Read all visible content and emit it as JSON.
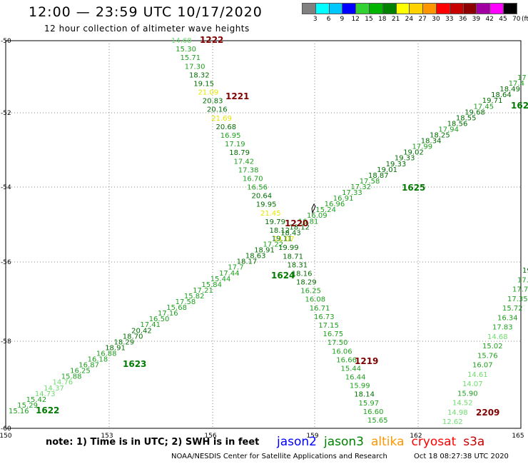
{
  "header": {
    "title": "12:00 — 23:59 UTC 10/17/2020",
    "subtitle": "12 hour collection of altimeter wave heights"
  },
  "legend": {
    "unit": "(ft)",
    "bins": [
      {
        "label": "3",
        "color": "#808080"
      },
      {
        "label": "6",
        "color": "#00ffff"
      },
      {
        "label": "9",
        "color": "#00c8ff"
      },
      {
        "label": "12",
        "color": "#0000ff"
      },
      {
        "label": "15",
        "color": "#32d232"
      },
      {
        "label": "18",
        "color": "#00b400"
      },
      {
        "label": "21",
        "color": "#008200"
      },
      {
        "label": "24",
        "color": "#ffff00"
      },
      {
        "label": "27",
        "color": "#ffd200"
      },
      {
        "label": "30",
        "color": "#ff9600"
      },
      {
        "label": "33",
        "color": "#ff0000"
      },
      {
        "label": "36",
        "color": "#c80000"
      },
      {
        "label": "39",
        "color": "#8c0000"
      },
      {
        "label": "42",
        "color": "#a000a0"
      },
      {
        "label": "45",
        "color": "#ff00ff"
      },
      {
        "label": "70",
        "color": "#000000"
      }
    ]
  },
  "map": {
    "lon_labels": [
      "150",
      "153",
      "156",
      "159",
      "162",
      "165"
    ],
    "lat_labels": [
      "-50",
      "-52",
      "-54",
      "-56",
      "-58",
      "-60"
    ],
    "passes": [
      {
        "label": "1222",
        "color": "#800000"
      },
      {
        "label": "1221",
        "color": "#800000"
      },
      {
        "label": "1220",
        "color": "#800000"
      },
      {
        "label": "1219",
        "color": "#800000"
      },
      {
        "label": "2209",
        "color": "#800000"
      },
      {
        "label": "1625",
        "color": "#007a00"
      },
      {
        "label": "1624",
        "color": "#007a00"
      },
      {
        "label": "1623",
        "color": "#007a00"
      },
      {
        "label": "1622",
        "color": "#007a00"
      },
      {
        "label": "162",
        "color": "#007a00"
      }
    ],
    "track_values": {
      "jason3_desc_a": [
        "14.68",
        "15.30",
        "15.71",
        "17.30",
        "18.32",
        "19.15",
        "21.09",
        "20.83",
        "20.16",
        "21.69",
        "20.68",
        "16.95",
        "17.19",
        "18.79",
        "17.42",
        "17.38",
        "16.70",
        "16.56",
        "20.64",
        "19.95",
        "21.45",
        "19.79",
        "18.12",
        "21.07",
        "19.99",
        "18.71",
        "18.31",
        "18.16",
        "18.29",
        "16.25",
        "16.08",
        "16.71",
        "16.73",
        "17.15",
        "16.75",
        "17.50",
        "16.06",
        "16.66",
        "15.44",
        "16.44",
        "15.99",
        "18.14",
        "15.97",
        "16.60",
        "15.65"
      ],
      "jason3_asc": [
        "15.16",
        "15.29",
        "15.42",
        "14.73",
        "14.37",
        "14.76",
        "15.88",
        "16.25",
        "16.87",
        "16.18",
        "16.88",
        "18.91",
        "18.29",
        "18.70",
        "20.42",
        "17.41",
        "16.50",
        "17.16",
        "15.68",
        "17.58",
        "15.82",
        "17.21",
        "15.84",
        "15.44",
        "17.44",
        "17.7",
        "18.17",
        "18.63",
        "18.91",
        "17.22",
        "19.11",
        "18.43",
        "18.12",
        "16.81",
        "16.09",
        "15.24",
        "16.96",
        "16.91",
        "17.33",
        "17.32",
        "17.58",
        "18.87",
        "19.01",
        "19.33",
        "19.33",
        "19.02",
        "17.99",
        "18.34",
        "18.25",
        "17.94",
        "18.56",
        "18.55",
        "19.68",
        "17.45",
        "19.71",
        "18.64",
        "18.49",
        "17.4",
        "17"
      ],
      "jason3_desc_b": [
        "19",
        "17.",
        "17.7",
        "17.35",
        "15.72",
        "16.34",
        "17.83",
        "14.68",
        "15.02",
        "15.76",
        "16.07",
        "14.61",
        "14.07",
        "15.90",
        "14.52",
        "14.98",
        "12.62"
      ]
    }
  },
  "footer": {
    "note": "note:  1) Time is in UTC;  2) SWH is in feet",
    "satellites": [
      {
        "name": "jason2",
        "color": "#0000ff"
      },
      {
        "name": "jason3",
        "color": "#008200"
      },
      {
        "name": "altika",
        "color": "#ff9600"
      },
      {
        "name": "cryosat",
        "color": "#ff0000"
      },
      {
        "name": "s3a",
        "color": "#c80000"
      }
    ],
    "credit": "NOAA/NESDIS Center for Satellite Applications and Research",
    "timestamp": "Oct 18 08:27:38 UTC 2020"
  }
}
